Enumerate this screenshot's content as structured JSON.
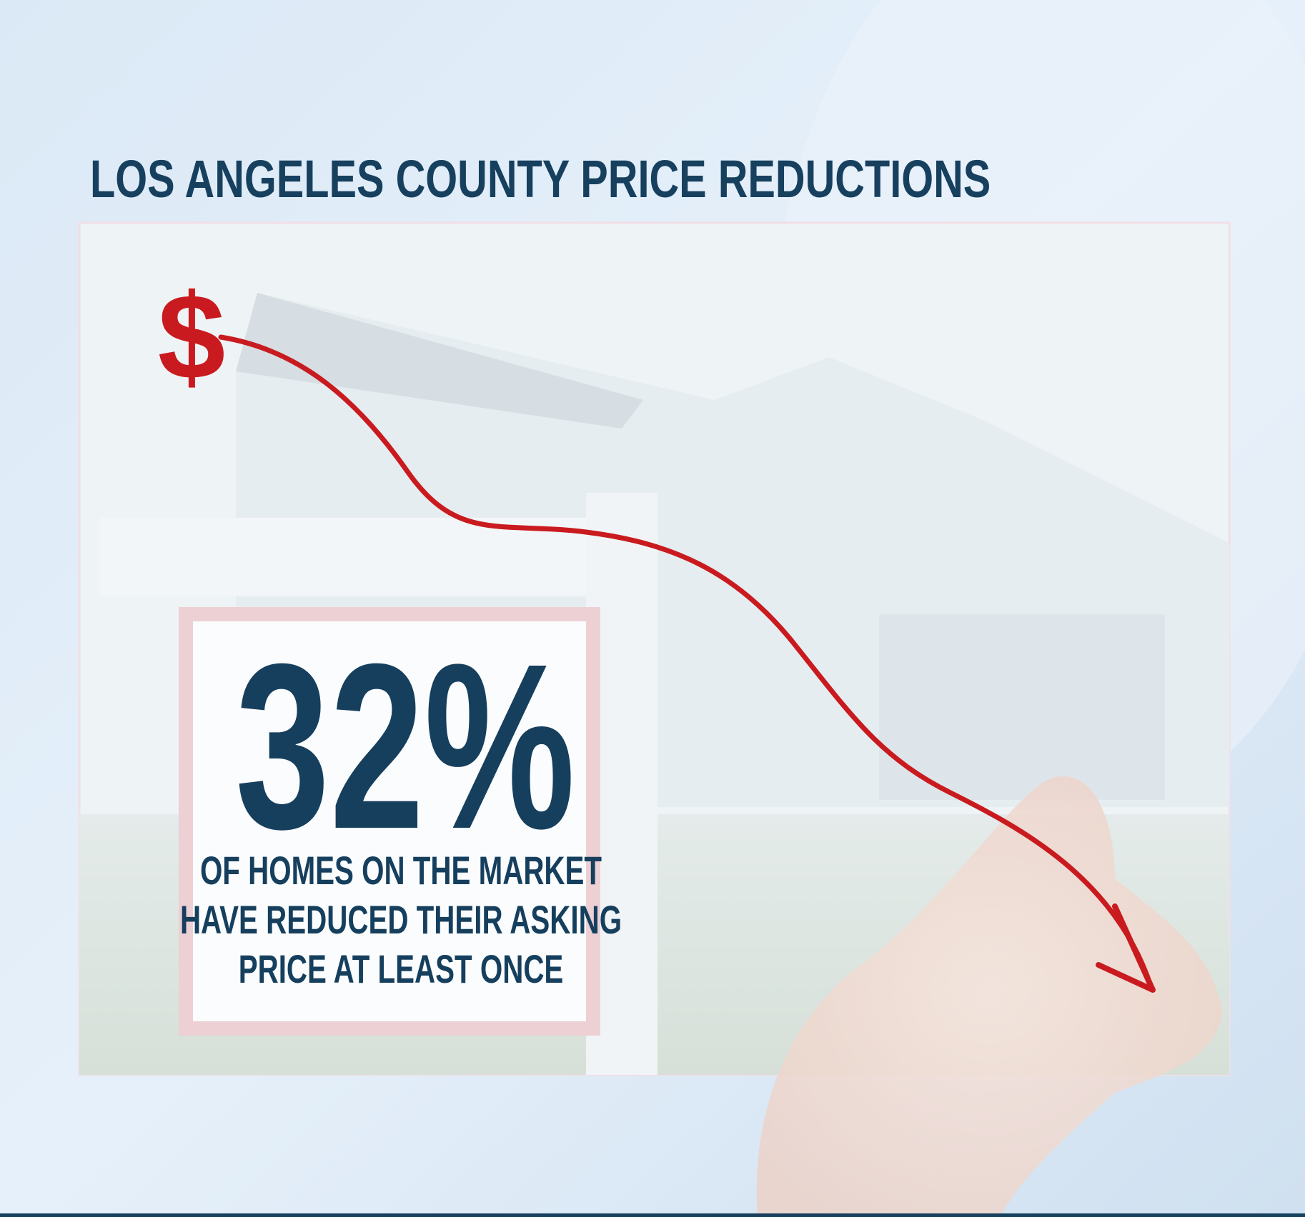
{
  "header": {
    "title": "LOS ANGELES COUNTY PRICE REDUCTIONS"
  },
  "graphic": {
    "symbol": "$"
  },
  "stat": {
    "figure": "32%",
    "lines": [
      "OF HOMES ON THE MARKET",
      "HAVE REDUCED THEIR ASKING",
      "PRICE AT LEAST ONCE"
    ]
  }
}
